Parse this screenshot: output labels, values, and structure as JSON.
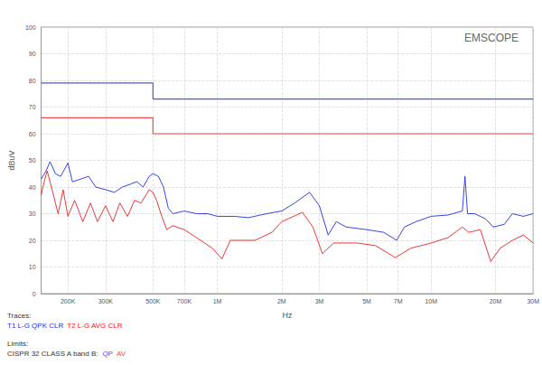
{
  "chart_data": {
    "type": "line",
    "annotation": "EMSCOPE",
    "xlabel": "Hz",
    "ylabel": "dBuV",
    "log": "x",
    "grid": true,
    "xlim": [
      150000,
      30000000
    ],
    "xticks": [
      {
        "value": 200000,
        "label": "200K"
      },
      {
        "value": 300000,
        "label": "300K"
      },
      {
        "value": 500000,
        "label": "500K"
      },
      {
        "value": 700000,
        "label": "700K"
      },
      {
        "value": 1000000,
        "label": "1M"
      },
      {
        "value": 2000000,
        "label": "2M"
      },
      {
        "value": 3000000,
        "label": "3M"
      },
      {
        "value": 5000000,
        "label": "5M"
      },
      {
        "value": 7000000,
        "label": "7M"
      },
      {
        "value": 10000000,
        "label": "10M"
      },
      {
        "value": 20000000,
        "label": "20M"
      },
      {
        "value": 30000000,
        "label": "30M"
      }
    ],
    "ylim": [
      0,
      100
    ],
    "yticks": [
      0,
      10,
      20,
      30,
      40,
      50,
      60,
      70,
      80,
      90,
      100
    ],
    "traces_heading": "Traces:",
    "limits_heading": "Limits:",
    "limits_label": "CISPR 32 CLASS A band B:",
    "series": [
      {
        "name": "T1 L-G QPK CLR",
        "color": "#1f2fe0",
        "group": "traces",
        "x": [
          150000,
          158000,
          165000,
          175000,
          185000,
          200000,
          210000,
          230000,
          250000,
          270000,
          300000,
          330000,
          360000,
          390000,
          420000,
          450000,
          480000,
          500000,
          530000,
          560000,
          590000,
          620000,
          700000,
          800000,
          900000,
          1000000,
          1200000,
          1400000,
          1700000,
          2000000,
          2300000,
          2700000,
          3000000,
          3300000,
          3600000,
          4000000,
          5000000,
          6000000,
          6900000,
          7500000,
          8500000,
          10000000,
          12000000,
          14000000,
          14400000,
          14800000,
          16000000,
          18000000,
          19500000,
          22000000,
          24000000,
          27000000,
          30000000
        ],
        "values": [
          43,
          46,
          49.5,
          45,
          44,
          49,
          42,
          43,
          44,
          40,
          39,
          38,
          40,
          41,
          42,
          40,
          44,
          45,
          44,
          40,
          32,
          30,
          31,
          30,
          30,
          29,
          29,
          28.5,
          30,
          31,
          34,
          38,
          33,
          22,
          27,
          25,
          24,
          23,
          20,
          25,
          27,
          29,
          29.5,
          31,
          44,
          30,
          30,
          28,
          25,
          26,
          30,
          29,
          30
        ]
      },
      {
        "name": "T2 L-G AVG CLR",
        "color": "#e62222",
        "group": "traces",
        "x": [
          150000,
          155000,
          160000,
          170000,
          180000,
          190000,
          200000,
          215000,
          235000,
          255000,
          275000,
          300000,
          325000,
          350000,
          380000,
          410000,
          440000,
          480000,
          500000,
          520000,
          550000,
          580000,
          620000,
          700000,
          800000,
          950000,
          1050000,
          1150000,
          1500000,
          1800000,
          2000000,
          2500000,
          2800000,
          3100000,
          3500000,
          4500000,
          5500000,
          6800000,
          8000000,
          10000000,
          12000000,
          14000000,
          15000000,
          17000000,
          19000000,
          21000000,
          24000000,
          27000000,
          30000000
        ],
        "values": [
          37,
          42,
          46,
          38,
          30,
          39,
          29,
          35,
          27,
          34,
          27,
          33,
          27,
          34,
          29,
          35,
          34,
          39,
          38,
          35,
          29,
          24,
          25.5,
          24,
          21,
          17,
          13,
          20,
          20,
          23,
          27,
          30.5,
          25,
          15,
          19,
          19,
          18,
          13.5,
          17,
          19,
          21,
          25,
          23,
          24,
          12,
          17,
          20,
          22,
          19
        ]
      },
      {
        "name": "QP",
        "color": "#4a5ad8",
        "group": "limits",
        "x": [
          150000,
          500000,
          500000,
          30000000
        ],
        "values": [
          79,
          79,
          73,
          73
        ]
      },
      {
        "name": "AV",
        "color": "#e84c4c",
        "group": "limits",
        "x": [
          150000,
          500000,
          500000,
          30000000
        ],
        "values": [
          66,
          66,
          60,
          60
        ]
      }
    ]
  }
}
